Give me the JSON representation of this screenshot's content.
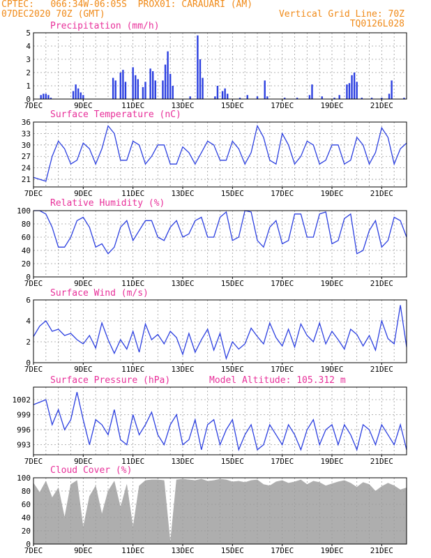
{
  "header": {
    "line1_left": "CPTEC:   066:34W-06:05S  PROX01: CARAUARI (AM)",
    "line2_left": "07DEC2020 70Z (GMT)",
    "line2_right": "Vertical Grid Line: 70Z",
    "line3_right": "TQ0126L028"
  },
  "colors": {
    "header": "#f08a18",
    "title": "#e8309a",
    "line": "#2b3fe0",
    "bar": "#2b3fe0",
    "cloud": "#aeaeae",
    "grid": "#9a9a9a"
  },
  "x_labels": [
    "7DEC",
    "9DEC",
    "11DEC",
    "13DEC",
    "15DEC",
    "17DEC",
    "19DEC",
    "21DEC"
  ],
  "chart_data": [
    {
      "id": "precip",
      "type": "bar",
      "title": "Precipitation (mm/h)",
      "ylim": [
        0,
        5
      ],
      "yticks": [
        0,
        1,
        2,
        3,
        4,
        5
      ],
      "x_range_days": [
        7,
        22
      ],
      "x": [
        7.3,
        7.4,
        7.5,
        7.6,
        7.7,
        8.6,
        8.7,
        8.8,
        8.9,
        9.0,
        10.2,
        10.3,
        10.5,
        10.6,
        10.7,
        11.0,
        11.1,
        11.2,
        11.4,
        11.5,
        11.7,
        11.8,
        11.9,
        12.2,
        12.3,
        12.4,
        12.5,
        12.6,
        13.3,
        13.6,
        13.7,
        13.8,
        14.3,
        14.4,
        14.6,
        14.7,
        14.8,
        15.3,
        15.6,
        16.0,
        16.3,
        16.4,
        17.1,
        17.6,
        18.1,
        18.2,
        18.6,
        19.1,
        19.3,
        19.6,
        19.7,
        19.8,
        19.9,
        20.0,
        20.2,
        20.6,
        21.0,
        21.3,
        21.4,
        21.9
      ],
      "values": [
        0.3,
        0.4,
        0.4,
        0.3,
        0.1,
        0.6,
        1.1,
        0.8,
        0.5,
        0.3,
        1.6,
        1.4,
        2.0,
        2.2,
        1.3,
        2.4,
        1.8,
        1.5,
        0.9,
        1.3,
        2.3,
        2.1,
        1.4,
        1.4,
        2.6,
        3.6,
        1.9,
        1.0,
        0.2,
        4.8,
        3.0,
        1.6,
        0.2,
        1.0,
        0.6,
        0.8,
        0.4,
        0.1,
        0.3,
        0.2,
        1.4,
        0.2,
        0.1,
        0.1,
        0.3,
        1.1,
        0.2,
        0.1,
        0.3,
        1.1,
        1.2,
        1.8,
        2.0,
        1.3,
        0.1,
        0.1,
        0.1,
        0.4,
        1.4,
        0.1
      ]
    },
    {
      "id": "temp",
      "type": "line",
      "title": "Surface Temperature (nC)",
      "ylim": [
        19,
        36
      ],
      "yticks": [
        21,
        24,
        27,
        30,
        33,
        36
      ],
      "x_range_days": [
        7,
        22
      ],
      "x": [
        7.0,
        7.25,
        7.5,
        7.75,
        8.0,
        8.25,
        8.5,
        8.75,
        9.0,
        9.25,
        9.5,
        9.75,
        10.0,
        10.25,
        10.5,
        10.75,
        11.0,
        11.25,
        11.5,
        11.75,
        12.0,
        12.25,
        12.5,
        12.75,
        13.0,
        13.25,
        13.5,
        13.75,
        14.0,
        14.25,
        14.5,
        14.75,
        15.0,
        15.25,
        15.5,
        15.75,
        16.0,
        16.25,
        16.5,
        16.75,
        17.0,
        17.25,
        17.5,
        17.75,
        18.0,
        18.25,
        18.5,
        18.75,
        19.0,
        19.25,
        19.5,
        19.75,
        20.0,
        20.25,
        20.5,
        20.75,
        21.0,
        21.25,
        21.5,
        21.75,
        22.0
      ],
      "values": [
        21.5,
        21,
        20.5,
        27,
        31,
        29,
        25,
        26,
        30.5,
        29,
        25,
        29,
        35,
        33,
        26,
        26,
        31,
        30,
        25,
        27,
        30,
        30,
        25,
        25,
        29.5,
        28,
        25,
        28,
        31,
        30,
        26,
        26,
        31,
        29,
        25,
        28,
        35,
        32,
        26,
        25,
        33,
        30,
        25,
        27,
        31,
        30,
        25,
        26,
        30,
        30,
        25,
        26,
        32,
        30,
        25,
        28,
        34.5,
        32,
        25,
        29,
        30.5
      ]
    },
    {
      "id": "rh",
      "type": "line",
      "title": "Relative Humidity (%)",
      "ylim": [
        0,
        100
      ],
      "yticks": [
        0,
        20,
        40,
        60,
        80,
        100
      ],
      "x_range_days": [
        7,
        22
      ],
      "x": [
        7.0,
        7.25,
        7.5,
        7.75,
        8.0,
        8.25,
        8.5,
        8.75,
        9.0,
        9.25,
        9.5,
        9.75,
        10.0,
        10.25,
        10.5,
        10.75,
        11.0,
        11.25,
        11.5,
        11.75,
        12.0,
        12.25,
        12.5,
        12.75,
        13.0,
        13.25,
        13.5,
        13.75,
        14.0,
        14.25,
        14.5,
        14.75,
        15.0,
        15.25,
        15.5,
        15.75,
        16.0,
        16.25,
        16.5,
        16.75,
        17.0,
        17.25,
        17.5,
        17.75,
        18.0,
        18.25,
        18.5,
        18.75,
        19.0,
        19.25,
        19.5,
        19.75,
        20.0,
        20.25,
        20.5,
        20.75,
        21.0,
        21.25,
        21.5,
        21.75,
        22.0
      ],
      "values": [
        100,
        100,
        95,
        75,
        45,
        45,
        60,
        85,
        90,
        75,
        45,
        50,
        35,
        45,
        75,
        85,
        55,
        70,
        85,
        85,
        60,
        55,
        75,
        85,
        60,
        65,
        85,
        90,
        60,
        60,
        90,
        98,
        55,
        60,
        100,
        98,
        55,
        45,
        75,
        85,
        50,
        55,
        95,
        95,
        60,
        60,
        95,
        98,
        50,
        55,
        88,
        95,
        35,
        40,
        70,
        85,
        45,
        55,
        90,
        85,
        60
      ]
    },
    {
      "id": "wind",
      "type": "line",
      "title": "Surface Wind (m/s)",
      "ylim": [
        0,
        6
      ],
      "yticks": [
        0,
        2,
        4,
        6
      ],
      "x_range_days": [
        7,
        22
      ],
      "x": [
        7.0,
        7.25,
        7.5,
        7.75,
        8.0,
        8.25,
        8.5,
        8.75,
        9.0,
        9.25,
        9.5,
        9.75,
        10.0,
        10.25,
        10.5,
        10.75,
        11.0,
        11.25,
        11.5,
        11.75,
        12.0,
        12.25,
        12.5,
        12.75,
        13.0,
        13.25,
        13.5,
        13.75,
        14.0,
        14.25,
        14.5,
        14.75,
        15.0,
        15.25,
        15.5,
        15.75,
        16.0,
        16.25,
        16.5,
        16.75,
        17.0,
        17.25,
        17.5,
        17.75,
        18.0,
        18.25,
        18.5,
        18.75,
        19.0,
        19.25,
        19.5,
        19.75,
        20.0,
        20.25,
        20.5,
        20.75,
        21.0,
        21.25,
        21.5,
        21.75,
        22.0
      ],
      "values": [
        2.5,
        3.5,
        4.0,
        3.0,
        3.2,
        2.6,
        2.8,
        2.2,
        1.8,
        2.6,
        1.4,
        3.8,
        2.2,
        0.9,
        2.2,
        1.3,
        3.0,
        1.0,
        3.7,
        2.2,
        2.7,
        1.8,
        3.0,
        2.4,
        0.8,
        2.8,
        1.0,
        2.2,
        3.2,
        1.2,
        2.8,
        0.4,
        2.0,
        1.3,
        1.8,
        3.3,
        2.5,
        1.8,
        3.8,
        2.4,
        1.6,
        3.2,
        1.5,
        3.7,
        2.6,
        2.0,
        3.8,
        1.8,
        3.0,
        2.2,
        1.3,
        3.2,
        2.7,
        1.6,
        2.6,
        1.2,
        4.0,
        2.3,
        1.8,
        5.5,
        1.5
      ]
    },
    {
      "id": "pres",
      "type": "line",
      "title": "Surface Pressure (hPa)",
      "annotation": "Model Altitude: 105.312 m",
      "ylim": [
        991,
        1004.5
      ],
      "yticks": [
        993,
        996,
        999,
        1002
      ],
      "x_range_days": [
        7,
        22
      ],
      "x": [
        7.0,
        7.25,
        7.5,
        7.75,
        8.0,
        8.25,
        8.5,
        8.75,
        9.0,
        9.25,
        9.5,
        9.75,
        10.0,
        10.25,
        10.5,
        10.75,
        11.0,
        11.25,
        11.5,
        11.75,
        12.0,
        12.25,
        12.5,
        12.75,
        13.0,
        13.25,
        13.5,
        13.75,
        14.0,
        14.25,
        14.5,
        14.75,
        15.0,
        15.25,
        15.5,
        15.75,
        16.0,
        16.25,
        16.5,
        16.75,
        17.0,
        17.25,
        17.5,
        17.75,
        18.0,
        18.25,
        18.5,
        18.75,
        19.0,
        19.25,
        19.5,
        19.75,
        20.0,
        20.25,
        20.5,
        20.75,
        21.0,
        21.25,
        21.5,
        21.75,
        22.0
      ],
      "values": [
        1001,
        1001.5,
        1002,
        997,
        1000,
        996,
        998,
        1003.5,
        998,
        993,
        998,
        997,
        995,
        1000,
        994,
        993,
        999,
        995,
        997,
        999.5,
        995,
        993,
        997,
        999,
        993,
        994,
        998,
        992,
        997,
        998,
        993,
        996,
        998,
        992,
        995,
        997,
        992,
        993,
        997,
        995,
        993,
        997,
        995,
        992,
        996,
        998,
        993,
        996,
        997,
        993,
        997,
        995,
        992,
        997,
        996,
        993,
        997,
        995,
        993,
        997,
        992
      ]
    },
    {
      "id": "cloud",
      "type": "area",
      "title": "Cloud Cover (%)",
      "ylim": [
        0,
        100
      ],
      "yticks": [
        0,
        20,
        40,
        60,
        80,
        100
      ],
      "x_range_days": [
        7,
        22
      ],
      "x": [
        7.0,
        7.25,
        7.5,
        7.75,
        8.0,
        8.25,
        8.5,
        8.75,
        9.0,
        9.25,
        9.5,
        9.75,
        10.0,
        10.25,
        10.5,
        10.75,
        11.0,
        11.25,
        11.5,
        11.75,
        12.0,
        12.25,
        12.5,
        12.75,
        13.0,
        13.25,
        13.5,
        13.75,
        14.0,
        14.25,
        14.5,
        14.75,
        15.0,
        15.25,
        15.5,
        15.75,
        16.0,
        16.25,
        16.5,
        16.75,
        17.0,
        17.25,
        17.5,
        17.75,
        18.0,
        18.25,
        18.5,
        18.75,
        19.0,
        19.25,
        19.5,
        19.75,
        20.0,
        20.25,
        20.5,
        20.75,
        21.0,
        21.25,
        21.5,
        21.75,
        22.0
      ],
      "values": [
        92,
        78,
        95,
        70,
        85,
        40,
        90,
        96,
        25,
        72,
        88,
        45,
        80,
        95,
        55,
        90,
        25,
        88,
        96,
        97,
        97,
        96,
        2,
        97,
        98,
        97,
        96,
        98,
        95,
        96,
        98,
        97,
        94,
        95,
        93,
        96,
        97,
        90,
        88,
        94,
        96,
        92,
        94,
        97,
        90,
        95,
        93,
        88,
        91,
        94,
        96,
        92,
        86,
        93,
        90,
        80,
        87,
        92,
        88,
        82,
        85
      ]
    }
  ]
}
